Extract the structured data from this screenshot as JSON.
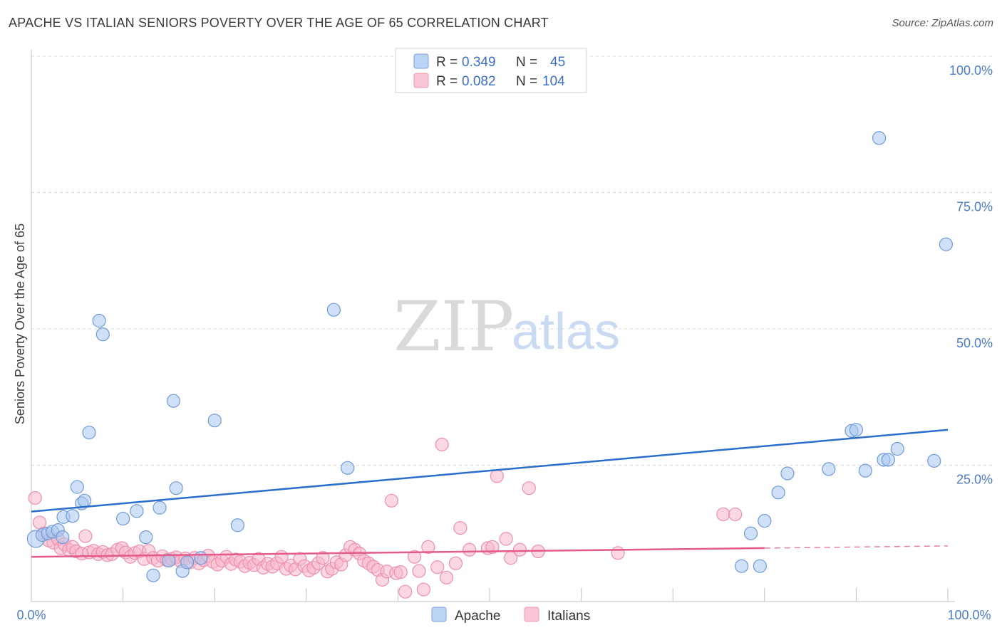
{
  "title": "APACHE VS ITALIAN SENIORS POVERTY OVER THE AGE OF 65 CORRELATION CHART",
  "source": "Source: ZipAtlas.com",
  "watermark": {
    "part1": "ZIP",
    "part2": "atlas"
  },
  "legend": {
    "r_label": "R =",
    "n_label": "N =",
    "apache": {
      "r": "0.349",
      "n": "45"
    },
    "italians": {
      "r": "0.082",
      "n": "104"
    }
  },
  "chart_data": {
    "type": "scatter",
    "title": "APACHE VS ITALIAN SENIORS POVERTY OVER THE AGE OF 65 CORRELATION CHART",
    "xlabel": "",
    "ylabel": "Seniors Poverty Over the Age of 65",
    "xlim": [
      0,
      100
    ],
    "ylim": [
      0,
      100
    ],
    "x_tick_labels": [
      "0.0%",
      "100.0%"
    ],
    "y_tick_labels": [
      "25.0%",
      "50.0%",
      "75.0%",
      "100.0%"
    ],
    "y_ticks": [
      25,
      50,
      75,
      100
    ],
    "colors": {
      "apache_fill": "#a9c8f0",
      "apache_stroke": "#6f9ad8",
      "apache_line": "#2a6dcc",
      "italians_fill": "#f6b7cb",
      "italians_stroke": "#ec8fae",
      "italians_line": "#e45b8b",
      "grid": "#d9d9d9",
      "tick": "#4a7cc9"
    },
    "series": [
      {
        "name": "Apache",
        "trend": {
          "x0": 0,
          "y0": 16.5,
          "x1": 100,
          "y1": 31.5
        },
        "points": [
          [
            0.5,
            11.5
          ],
          [
            1.2,
            12.2
          ],
          [
            1.8,
            12.5
          ],
          [
            2.3,
            12.8
          ],
          [
            2.9,
            13.1
          ],
          [
            3.4,
            11.8
          ],
          [
            3.5,
            15.5
          ],
          [
            4.5,
            15.7
          ],
          [
            5.0,
            21.0
          ],
          [
            5.5,
            18.0
          ],
          [
            5.8,
            18.5
          ],
          [
            6.3,
            31.0
          ],
          [
            7.4,
            51.5
          ],
          [
            7.8,
            49.0
          ],
          [
            10.0,
            15.2
          ],
          [
            11.5,
            16.6
          ],
          [
            12.5,
            11.8
          ],
          [
            13.3,
            4.8
          ],
          [
            14.0,
            17.2
          ],
          [
            15.0,
            7.5
          ],
          [
            15.5,
            36.8
          ],
          [
            15.8,
            20.8
          ],
          [
            16.5,
            5.6
          ],
          [
            17.0,
            7.2
          ],
          [
            18.5,
            8.0
          ],
          [
            20.0,
            33.2
          ],
          [
            22.5,
            14.0
          ],
          [
            33.0,
            53.5
          ],
          [
            34.5,
            24.5
          ],
          [
            77.5,
            6.5
          ],
          [
            78.5,
            12.5
          ],
          [
            79.5,
            6.5
          ],
          [
            80.0,
            14.8
          ],
          [
            81.5,
            20.0
          ],
          [
            82.5,
            23.5
          ],
          [
            87.0,
            24.3
          ],
          [
            89.5,
            31.3
          ],
          [
            90.0,
            31.5
          ],
          [
            91.0,
            24.0
          ],
          [
            92.5,
            85.0
          ],
          [
            93.0,
            26.0
          ],
          [
            93.5,
            26.0
          ],
          [
            94.5,
            28.0
          ],
          [
            98.5,
            25.8
          ],
          [
            99.8,
            65.5
          ]
        ]
      },
      {
        "name": "Italians",
        "trend": {
          "x0": 0,
          "y0": 8.2,
          "x1": 80,
          "y1": 9.8,
          "dash_x1": 100,
          "dash_y1": 10.2
        },
        "points": [
          [
            0.4,
            19.0
          ],
          [
            0.9,
            14.5
          ],
          [
            1.4,
            12.5
          ],
          [
            1.9,
            11.2
          ],
          [
            2.4,
            10.8
          ],
          [
            2.9,
            11.5
          ],
          [
            3.2,
            9.8
          ],
          [
            3.6,
            10.5
          ],
          [
            4.1,
            9.5
          ],
          [
            4.5,
            10.0
          ],
          [
            4.9,
            9.2
          ],
          [
            5.5,
            8.8
          ],
          [
            5.9,
            12.0
          ],
          [
            6.3,
            9.0
          ],
          [
            6.8,
            9.3
          ],
          [
            7.3,
            8.7
          ],
          [
            7.8,
            9.1
          ],
          [
            8.3,
            8.5
          ],
          [
            8.8,
            8.7
          ],
          [
            9.4,
            9.5
          ],
          [
            9.9,
            9.8
          ],
          [
            10.3,
            9.0
          ],
          [
            10.8,
            8.2
          ],
          [
            11.3,
            8.9
          ],
          [
            11.8,
            9.2
          ],
          [
            12.3,
            7.8
          ],
          [
            12.8,
            9.3
          ],
          [
            13.3,
            8.0
          ],
          [
            13.8,
            7.5
          ],
          [
            14.3,
            8.3
          ],
          [
            14.8,
            7.6
          ],
          [
            15.3,
            7.8
          ],
          [
            15.8,
            8.1
          ],
          [
            16.3,
            7.4
          ],
          [
            16.8,
            7.9
          ],
          [
            17.3,
            7.2
          ],
          [
            17.8,
            8.0
          ],
          [
            18.3,
            7.0
          ],
          [
            18.8,
            7.6
          ],
          [
            19.3,
            8.4
          ],
          [
            19.8,
            7.3
          ],
          [
            20.3,
            6.8
          ],
          [
            20.8,
            7.5
          ],
          [
            21.3,
            8.2
          ],
          [
            21.8,
            6.9
          ],
          [
            22.3,
            7.7
          ],
          [
            22.8,
            7.3
          ],
          [
            23.3,
            6.5
          ],
          [
            23.8,
            7.1
          ],
          [
            24.3,
            6.7
          ],
          [
            24.8,
            7.8
          ],
          [
            25.3,
            6.2
          ],
          [
            25.8,
            6.9
          ],
          [
            26.3,
            6.4
          ],
          [
            26.8,
            7.0
          ],
          [
            27.3,
            8.2
          ],
          [
            27.8,
            6.0
          ],
          [
            28.3,
            6.6
          ],
          [
            28.8,
            5.9
          ],
          [
            29.3,
            7.8
          ],
          [
            29.8,
            6.5
          ],
          [
            30.3,
            5.7
          ],
          [
            30.8,
            6.2
          ],
          [
            31.3,
            7.0
          ],
          [
            31.8,
            8.0
          ],
          [
            32.3,
            5.5
          ],
          [
            32.8,
            6.0
          ],
          [
            33.3,
            7.2
          ],
          [
            33.8,
            6.8
          ],
          [
            34.3,
            8.5
          ],
          [
            34.8,
            10.0
          ],
          [
            35.3,
            9.5
          ],
          [
            35.8,
            8.8
          ],
          [
            36.3,
            7.5
          ],
          [
            36.8,
            7.0
          ],
          [
            37.3,
            6.4
          ],
          [
            37.8,
            5.8
          ],
          [
            38.3,
            4.0
          ],
          [
            38.8,
            5.5
          ],
          [
            39.3,
            18.5
          ],
          [
            39.8,
            5.2
          ],
          [
            40.3,
            5.4
          ],
          [
            40.8,
            1.8
          ],
          [
            41.8,
            8.2
          ],
          [
            42.3,
            5.6
          ],
          [
            42.8,
            2.2
          ],
          [
            43.3,
            10.0
          ],
          [
            44.3,
            6.3
          ],
          [
            44.8,
            28.8
          ],
          [
            45.3,
            4.4
          ],
          [
            46.3,
            7.0
          ],
          [
            46.8,
            13.5
          ],
          [
            47.8,
            9.5
          ],
          [
            49.8,
            9.8
          ],
          [
            50.3,
            10.0
          ],
          [
            50.8,
            23.0
          ],
          [
            51.8,
            11.5
          ],
          [
            52.3,
            8.0
          ],
          [
            53.3,
            9.5
          ],
          [
            54.3,
            20.8
          ],
          [
            55.3,
            9.2
          ],
          [
            75.5,
            16.0
          ],
          [
            76.8,
            16.0
          ],
          [
            64.0,
            8.9
          ]
        ]
      }
    ]
  },
  "bottom_legend": {
    "apache": "Apache",
    "italians": "Italians"
  }
}
